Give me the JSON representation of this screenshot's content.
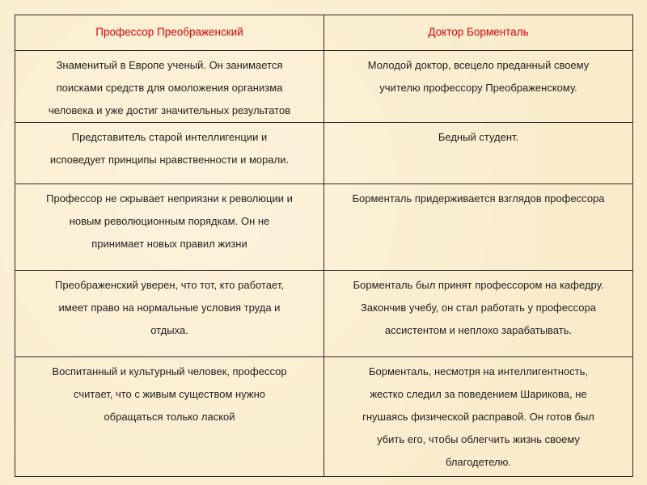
{
  "header": [
    "Профессор Преображенский",
    "Доктор Борменталь"
  ],
  "rows": [
    [
      [
        "Знаменитый в Европе ученый. Он занимается",
        "поисками средств для омоложения организма",
        "человека и уже достиг значительных результатов"
      ],
      [
        "Молодой доктор, всецело преданный своему",
        "учителю профессору Преображенскому."
      ]
    ],
    [
      [
        "Представитель старой интеллигенции и",
        "исповедует принципы нравственности и морали."
      ],
      [
        "Бедный студент."
      ]
    ],
    [
      [
        "Профессор не скрывает неприязни к революции и",
        "новым революционным порядкам. Он не",
        "принимает новых правил жизни"
      ],
      [
        "Борменталь придерживается взглядов профессора"
      ]
    ],
    [
      [
        "Преображенский уверен, что тот, кто работает,",
        "имеет право на нормальные условия труда и",
        "отдыха."
      ],
      [
        "Борменталь был принят профессором на кафедру.",
        "Закончив учебу, он стал работать у профессора",
        "ассистентом и неплохо зарабатывать."
      ]
    ],
    [
      [
        "Воспитанный и культурный человек, профессор",
        "считает, что с живым существом нужно",
        "обращаться только лаской"
      ],
      [
        "Борменталь, несмотря на интеллигентность,",
        "жестко следил за поведением Шарикова, не",
        "гнушаясь физической расправой. Он готов был",
        "убить его, чтобы облегчить жизнь своему",
        "благодетелю."
      ]
    ]
  ],
  "colors": {
    "header_text": "#e00000",
    "background": "#fbeed2",
    "border": "#2a2a2a"
  }
}
